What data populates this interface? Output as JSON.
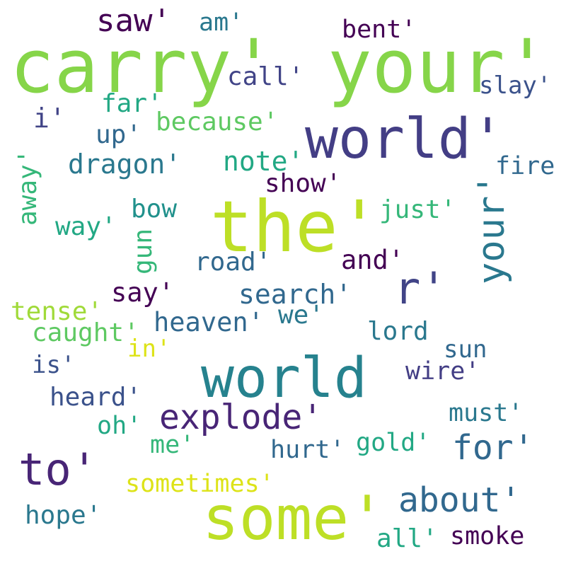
{
  "words": [
    {
      "text": "carry'",
      "color": "#86d549"
    },
    {
      "text": "your'",
      "color": "#86d549"
    },
    {
      "text": "saw'",
      "color": "#440154"
    },
    {
      "text": "am'",
      "color": "#2a788e"
    },
    {
      "text": "bent'",
      "color": "#440154"
    },
    {
      "text": "call'",
      "color": "#414487"
    },
    {
      "text": "slay'",
      "color": "#3b528b"
    },
    {
      "text": "far'",
      "color": "#22a884"
    },
    {
      "text": "because'",
      "color": "#5ec962"
    },
    {
      "text": "i'",
      "color": "#414487"
    },
    {
      "text": "up'",
      "color": "#31688e"
    },
    {
      "text": "world'",
      "color": "#433e85"
    },
    {
      "text": "dragon'",
      "color": "#2a788e"
    },
    {
      "text": "note'",
      "color": "#22a884"
    },
    {
      "text": "fire",
      "color": "#31688e"
    },
    {
      "text": "away'",
      "color": "#35b779"
    },
    {
      "text": "show'",
      "color": "#440154"
    },
    {
      "text": "the'",
      "color": "#bddf26"
    },
    {
      "text": "just'",
      "color": "#35b779"
    },
    {
      "text": "bow",
      "color": "#21918c"
    },
    {
      "text": "way'",
      "color": "#22a884"
    },
    {
      "text": "gun",
      "color": "#35b779"
    },
    {
      "text": "your'",
      "color": "#2a788e"
    },
    {
      "text": "road'",
      "color": "#31688e"
    },
    {
      "text": "and'",
      "color": "#440154"
    },
    {
      "text": "r'",
      "color": "#414487"
    },
    {
      "text": "say'",
      "color": "#440154"
    },
    {
      "text": "search'",
      "color": "#31688e"
    },
    {
      "text": "tense'",
      "color": "#a0da39"
    },
    {
      "text": "heaven'",
      "color": "#31688e"
    },
    {
      "text": "we'",
      "color": "#2a788e"
    },
    {
      "text": "caught'",
      "color": "#5ec962"
    },
    {
      "text": "lord",
      "color": "#2a788e"
    },
    {
      "text": "in'",
      "color": "#dde318"
    },
    {
      "text": "sun",
      "color": "#31688e"
    },
    {
      "text": "is'",
      "color": "#3b528b"
    },
    {
      "text": "world",
      "color": "#26828e"
    },
    {
      "text": "wire'",
      "color": "#433e85"
    },
    {
      "text": "heard'",
      "color": "#3b528b"
    },
    {
      "text": "explode'",
      "color": "#482576"
    },
    {
      "text": "must'",
      "color": "#2a788e"
    },
    {
      "text": "oh'",
      "color": "#22a884"
    },
    {
      "text": "for'",
      "color": "#31688e"
    },
    {
      "text": "me'",
      "color": "#35b779"
    },
    {
      "text": "hurt'",
      "color": "#31688e"
    },
    {
      "text": "gold'",
      "color": "#22a884"
    },
    {
      "text": "to'",
      "color": "#482576"
    },
    {
      "text": "sometimes'",
      "color": "#dde318"
    },
    {
      "text": "about'",
      "color": "#31688e"
    },
    {
      "text": "some'",
      "color": "#bddf26"
    },
    {
      "text": "hope'",
      "color": "#2a788e"
    },
    {
      "text": "all'",
      "color": "#22a884"
    },
    {
      "text": "smoke",
      "color": "#440154"
    }
  ]
}
